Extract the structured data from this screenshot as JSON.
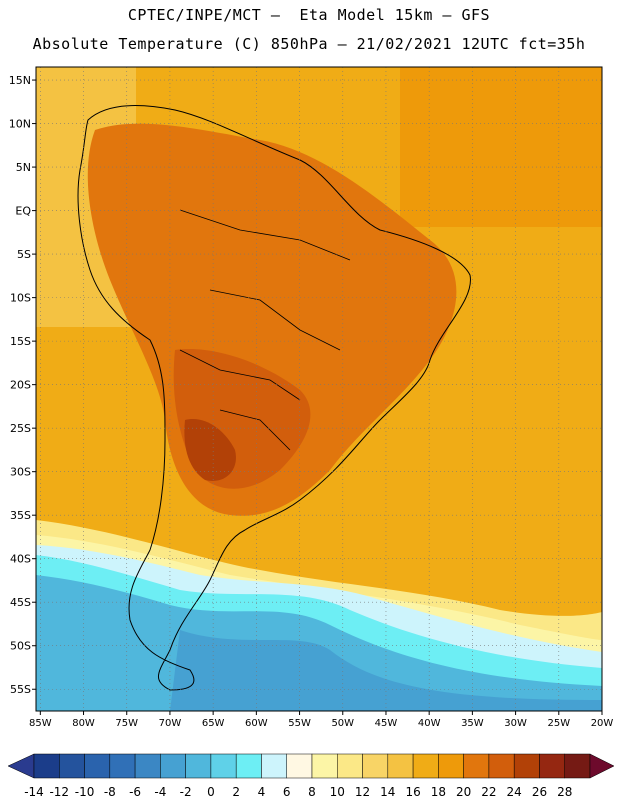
{
  "header": {
    "line1": "CPTEC/INPE/MCT –  Eta Model 15km – GFS",
    "line2": "Absolute Temperature (C) 850hPa – 21/02/2021 12UTC fct=35h"
  },
  "map": {
    "lat_labels": [
      "15N",
      "10N",
      "5N",
      "EQ",
      "5S",
      "10S",
      "15S",
      "20S",
      "25S",
      "30S",
      "35S",
      "40S",
      "45S",
      "50S",
      "55S"
    ],
    "lat_values": [
      15,
      10,
      5,
      0,
      -5,
      -10,
      -15,
      -20,
      -25,
      -30,
      -35,
      -40,
      -45,
      -50,
      -55
    ],
    "lon_labels": [
      "85W",
      "80W",
      "75W",
      "70W",
      "65W",
      "60W",
      "55W",
      "50W",
      "45W",
      "40W",
      "35W",
      "30W",
      "25W",
      "20W"
    ],
    "lon_values": [
      -85,
      -80,
      -75,
      -70,
      -65,
      -60,
      -55,
      -50,
      -45,
      -40,
      -35,
      -30,
      -25,
      -20
    ],
    "lon_range": [
      -85.5,
      -20
    ],
    "lat_range": [
      -57.5,
      16.5
    ]
  },
  "colorbar": {
    "labels": [
      "-14",
      "-12",
      "-10",
      "-8",
      "-6",
      "-4",
      "-2",
      "0",
      "2",
      "4",
      "6",
      "8",
      "10",
      "12",
      "14",
      "16",
      "18",
      "20",
      "22",
      "24",
      "26",
      "28"
    ],
    "colors": [
      "#1b3d8a",
      "#24539d",
      "#2a63ad",
      "#3070b7",
      "#3b87c4",
      "#46a1d2",
      "#50b7dc",
      "#5fd1e8",
      "#6deef4",
      "#cdf4fc",
      "#fff8e3",
      "#fcf5a6",
      "#fbe887",
      "#f8d466",
      "#f4c242",
      "#f0ac16",
      "#ee9a0a",
      "#e1760d",
      "#d25e0c",
      "#b24107",
      "#952711",
      "#751a14"
    ],
    "left_arrow_color": "#2a3b8f",
    "right_arrow_color": "#6d0a2c"
  }
}
